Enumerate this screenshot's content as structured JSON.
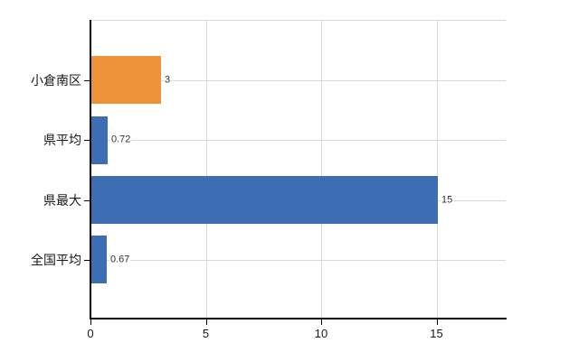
{
  "chart_data": {
    "type": "bar",
    "orientation": "horizontal",
    "title": "",
    "xlabel": "",
    "ylabel": "",
    "categories": [
      "小倉南区",
      "県平均",
      "県最大",
      "全国平均"
    ],
    "values": [
      3,
      0.72,
      15,
      0.67
    ],
    "data_labels": [
      "3",
      "0.72",
      "15",
      "0.67"
    ],
    "bar_colors": [
      "#ED9339",
      "#3D6EB4",
      "#3D6EB4",
      "#3D6EB4"
    ],
    "x_tick_labels": [
      "0",
      "5",
      "10",
      "15"
    ],
    "x_tick_values": [
      0,
      5,
      10,
      15
    ],
    "xlim": [
      0,
      18
    ],
    "grid": true,
    "legend": false,
    "colors": {
      "gridline": "#D9D9D9",
      "axis": "#000000",
      "background": "#FFFFFF",
      "highlight_bar": "#ED9339",
      "default_bar": "#3D6EB4"
    }
  }
}
